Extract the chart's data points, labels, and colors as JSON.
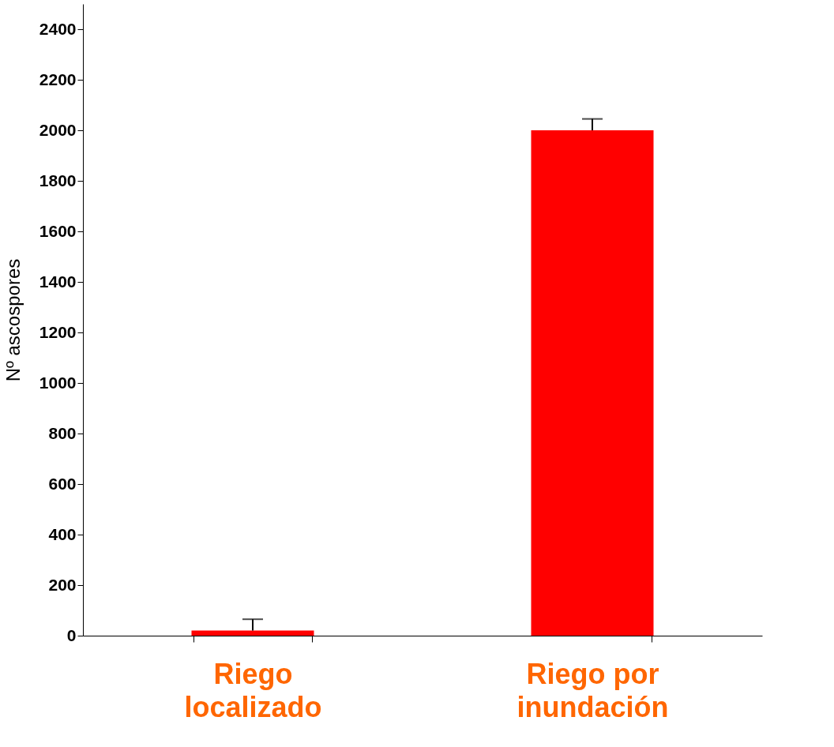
{
  "chart_data": {
    "type": "bar",
    "ylabel": "Nº ascospores",
    "categories": [
      "Riego\nlocalizado",
      "Riego por\ninundación"
    ],
    "series": [
      {
        "color": "#ff0000",
        "values": [
          20,
          2000
        ],
        "errors": [
          [
            20,
            65
          ],
          [
            2000,
            2045
          ]
        ]
      }
    ],
    "ylim": [
      0,
      2500
    ],
    "yticks": [
      0,
      200,
      400,
      600,
      800,
      1000,
      1200,
      1400,
      1600,
      1800,
      2000,
      2200,
      2400
    ],
    "grid": false
  }
}
